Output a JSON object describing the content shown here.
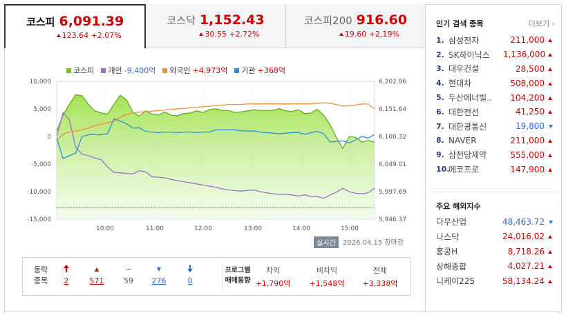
{
  "tabs": [
    {
      "name": "코스피",
      "value": "6,091.39",
      "change": "123.64",
      "pct": "+2.07%",
      "active": true
    },
    {
      "name": "코스닥",
      "value": "1,152.43",
      "change": "30.55",
      "pct": "+2.72%",
      "active": false
    },
    {
      "name": "코스피200",
      "value": "916.60",
      "change": "19.60",
      "pct": "+2.19%",
      "active": false
    }
  ],
  "legend": [
    {
      "name": "코스피",
      "value": "",
      "color": "#77c22a"
    },
    {
      "name": "개인",
      "value": "-9,400억",
      "color": "#9a72c4"
    },
    {
      "name": "외국인",
      "value": "+4,973억",
      "color": "#f0922b"
    },
    {
      "name": "기관",
      "value": "+368억",
      "color": "#2b8fdc"
    }
  ],
  "chart_data": {
    "type": "line",
    "x_ticks": [
      "10:00",
      "11:00",
      "12:00",
      "13:00",
      "14:00",
      "15:00"
    ],
    "y_left_ticks": [
      "10,000",
      "5,000",
      "0",
      "-5,000",
      "-10,000",
      "-15,000"
    ],
    "y_left_range": [
      -15000,
      10000
    ],
    "y_right_ticks": [
      "6,202.96",
      "6,151.64",
      "6,100.32",
      "6,049.01",
      "5,997.69",
      "5,946.37"
    ],
    "y_right_range": [
      5946.37,
      6202.96
    ],
    "prev_close": 5967.75,
    "series": [
      {
        "name": "코스피",
        "axis": "right",
        "values": [
          6111,
          6140,
          6160,
          6178,
          6176,
          6160,
          6148,
          6144,
          6142,
          6160,
          6177,
          6168,
          6145,
          6138,
          6148,
          6142,
          6140,
          6146,
          6140,
          6139,
          6143,
          6144,
          6148,
          6145,
          6150,
          6152,
          6149,
          6149,
          6145,
          6146,
          6148,
          6150,
          6149,
          6149,
          6149,
          6152,
          6148,
          6147,
          6150,
          6143,
          6144,
          6151,
          6140,
          6122,
          6098,
          6078,
          6100,
          6099,
          6090,
          6093,
          6090
        ]
      },
      {
        "name": "개인",
        "axis": "left",
        "values": [
          0,
          4300,
          3000,
          -2000,
          -3200,
          -3500,
          -3900,
          -4200,
          -5500,
          -6500,
          -6600,
          -6700,
          -6800,
          -6200,
          -6400,
          -7300,
          -7400,
          -7500,
          -7800,
          -8000,
          -8200,
          -8400,
          -8600,
          -8800,
          -9000,
          -9200,
          -9500,
          -9700,
          -9800,
          -9900,
          -9800,
          -9700,
          -10000,
          -10200,
          -10400,
          -10500,
          -10500,
          -10600,
          -10800,
          -10600,
          -10900,
          -10900,
          -11200,
          -10600,
          -10100,
          -9400,
          -10000,
          -10300,
          -10400,
          -10200,
          -9400
        ]
      },
      {
        "name": "외국인",
        "axis": "left",
        "values": [
          -700,
          400,
          800,
          1000,
          1200,
          1500,
          2000,
          2200,
          2500,
          2800,
          3500,
          4000,
          4300,
          4400,
          4500,
          4600,
          4700,
          4800,
          4900,
          5000,
          5100,
          5200,
          5300,
          5400,
          5500,
          5600,
          5700,
          5800,
          5800,
          5800,
          5900,
          5900,
          5900,
          5900,
          5900,
          5900,
          5900,
          5900,
          5900,
          5900,
          5900,
          6000,
          6100,
          6000,
          5800,
          5500,
          5600,
          5700,
          5900,
          5900,
          5000
        ]
      },
      {
        "name": "기관",
        "axis": "left",
        "values": [
          -300,
          -4000,
          -3500,
          -3000,
          0,
          300,
          400,
          300,
          500,
          3200,
          2800,
          2300,
          1500,
          1600,
          900,
          800,
          700,
          800,
          800,
          700,
          800,
          800,
          700,
          800,
          800,
          1200,
          1200,
          1200,
          1200,
          1000,
          1000,
          1000,
          800,
          700,
          600,
          500,
          600,
          700,
          700,
          400,
          700,
          900,
          500,
          -1000,
          -900,
          -800,
          -1200,
          -600,
          0,
          -300,
          368
        ]
      }
    ]
  },
  "realtime_label": "실시간",
  "date_label": "2026.04.15  장마감",
  "stats": {
    "label_line1": "등락",
    "label_line2": "종목",
    "cells": [
      {
        "icon": "upper-limit",
        "glyph": "🠉",
        "value": "2",
        "tone": "red"
      },
      {
        "icon": "rise",
        "glyph": "▲",
        "value": "571",
        "tone": "red"
      },
      {
        "icon": "unchanged",
        "glyph": "−",
        "value": "59",
        "tone": "gray"
      },
      {
        "icon": "fall",
        "glyph": "▼",
        "value": "276",
        "tone": "blue"
      },
      {
        "icon": "lower-limit",
        "glyph": "🠋",
        "value": "0",
        "tone": "blue"
      }
    ],
    "program_line1": "프로그램",
    "program_line2": "매매동향",
    "program": [
      {
        "head": "차익",
        "value": "+1,790억"
      },
      {
        "head": "비차익",
        "value": "+1,548억"
      },
      {
        "head": "전체",
        "value": "+3,338억"
      }
    ]
  },
  "popular": {
    "title": "인기 검색 종목",
    "more": "더보기",
    "items": [
      {
        "rank": "1.",
        "name": "삼성전자",
        "price": "211,000",
        "dir": "up"
      },
      {
        "rank": "2.",
        "name": "SK하이닉스",
        "price": "1,136,000",
        "dir": "up"
      },
      {
        "rank": "3.",
        "name": "대우건설",
        "price": "28,500",
        "dir": "up"
      },
      {
        "rank": "4.",
        "name": "현대차",
        "price": "508,000",
        "dir": "up"
      },
      {
        "rank": "5.",
        "name": "두산에너빌..",
        "price": "104,200",
        "dir": "up"
      },
      {
        "rank": "6.",
        "name": "대한전선",
        "price": "41,250",
        "dir": "up"
      },
      {
        "rank": "7.",
        "name": "대한광통신",
        "price": "19,800",
        "dir": "down"
      },
      {
        "rank": "8.",
        "name": "NAVER",
        "price": "211,000",
        "dir": "up"
      },
      {
        "rank": "9.",
        "name": "삼천당제약",
        "price": "555,000",
        "dir": "up"
      },
      {
        "rank": "10.",
        "name": "에코프로",
        "price": "147,900",
        "dir": "up"
      }
    ]
  },
  "overseas": {
    "title": "주요 해외지수",
    "items": [
      {
        "name": "다우산업",
        "value": "48,463.72",
        "dir": "down"
      },
      {
        "name": "나스닥",
        "value": "24,016.02",
        "dir": "up"
      },
      {
        "name": "홍콩H",
        "value": "8,718.26",
        "dir": "up"
      },
      {
        "name": "상해종합",
        "value": "4,027.21",
        "dir": "up"
      },
      {
        "name": "니케이225",
        "value": "58,134.24",
        "dir": "up"
      }
    ]
  }
}
